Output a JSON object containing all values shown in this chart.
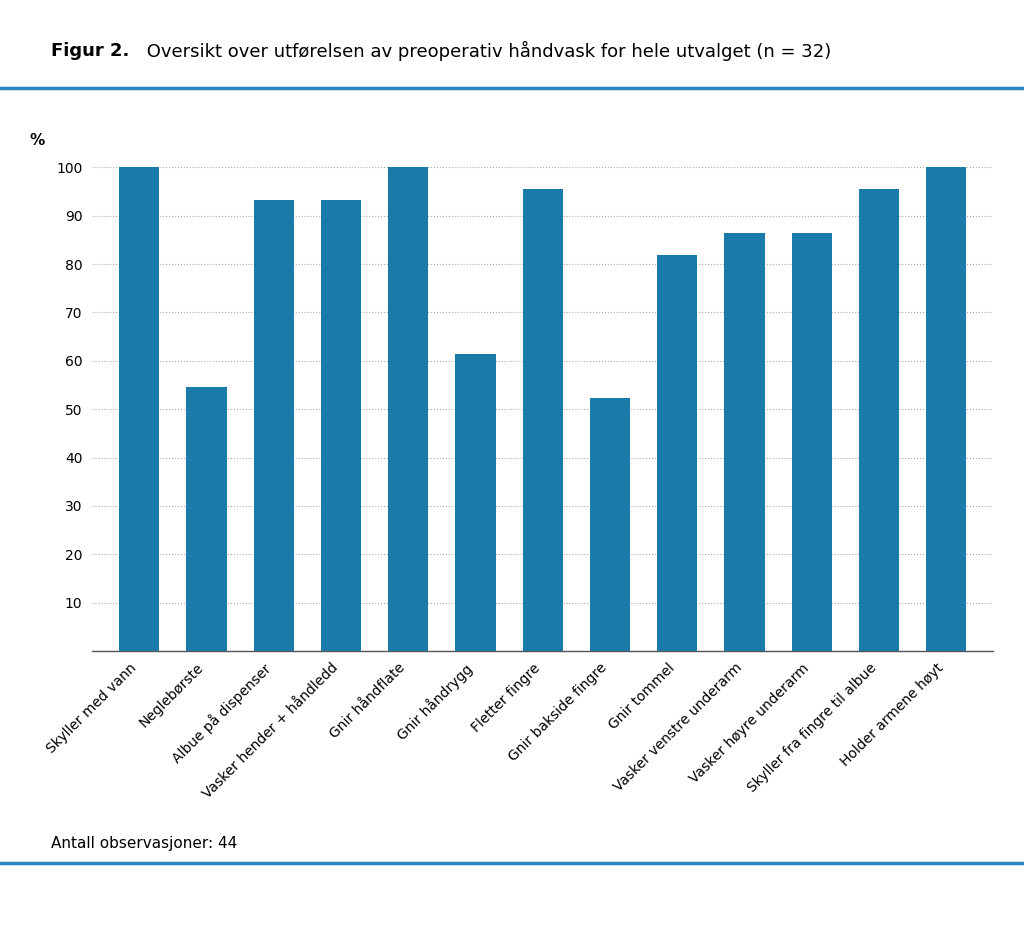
{
  "title_bold": "Figur 2.",
  "title_normal": " Oversikt over utførelsen av preoperativ håndvask for hele utvalget (n = 32)",
  "ylabel": "%",
  "footer": "Antall observasjoner: 44",
  "categories": [
    "Skyller med vann",
    "Neglebørste",
    "Albue på dispenser",
    "Vasker hender + håndledd",
    "Gnir håndflate",
    "Gnir håndrygg",
    "Fletter fingre",
    "Gnir bakside fingre",
    "Gnir tommel",
    "Vasker venstre underarm",
    "Vasker høyre underarm",
    "Skyller fra fingre til albue",
    "Holder armene høyt"
  ],
  "values": [
    100.0,
    54.5,
    93.2,
    93.2,
    100.0,
    61.4,
    95.5,
    52.3,
    81.8,
    86.4,
    86.4,
    95.5,
    100.0
  ],
  "bar_color": "#1a7aaa",
  "ylim": [
    0,
    100
  ],
  "yticks": [
    10,
    20,
    30,
    40,
    50,
    60,
    70,
    80,
    90,
    100
  ],
  "top_line_color": "#2e86c1",
  "bottom_line_color": "#2e86c1",
  "background_color": "#ffffff",
  "grid_color": "#aaaaaa",
  "title_fontsize": 13,
  "axis_label_fontsize": 11,
  "tick_fontsize": 10,
  "footer_fontsize": 11
}
